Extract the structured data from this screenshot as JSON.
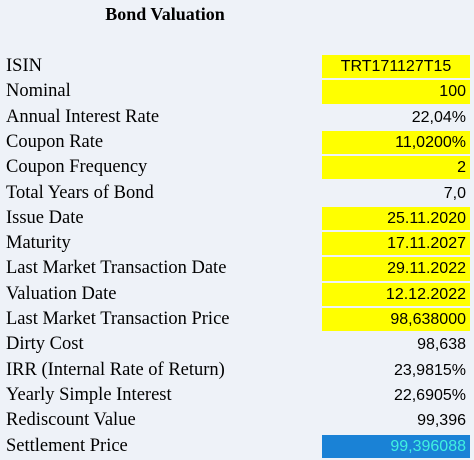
{
  "header": {
    "title": "Bond Valuation"
  },
  "table": {
    "rows": [
      [
        "ISIN",
        "TRT171127T15"
      ],
      [
        "Nominal",
        "100"
      ],
      [
        "Annual Interest Rate",
        "22,04%"
      ],
      [
        "Coupon Rate",
        "11,0200%"
      ],
      [
        "Coupon Frequency",
        "2"
      ],
      [
        "Total Years of Bond",
        "7,0"
      ],
      [
        "Issue Date",
        "25.11.2020"
      ],
      [
        "Maturity",
        "17.11.2027"
      ],
      [
        "Last Market Transaction Date",
        "29.11.2022"
      ],
      [
        "Valuation Date",
        "12.12.2022"
      ],
      [
        "Last Market Transaction Price",
        "98,638000"
      ],
      [
        "Dirty Cost",
        "98,638"
      ],
      [
        "IRR (Internal Rate of Return)",
        "23,9815%"
      ],
      [
        "Yearly Simple Interest",
        "22,6905%"
      ],
      [
        "Rediscount Value",
        "99,396"
      ],
      [
        "Settlement Price",
        "99,396088"
      ]
    ]
  }
}
